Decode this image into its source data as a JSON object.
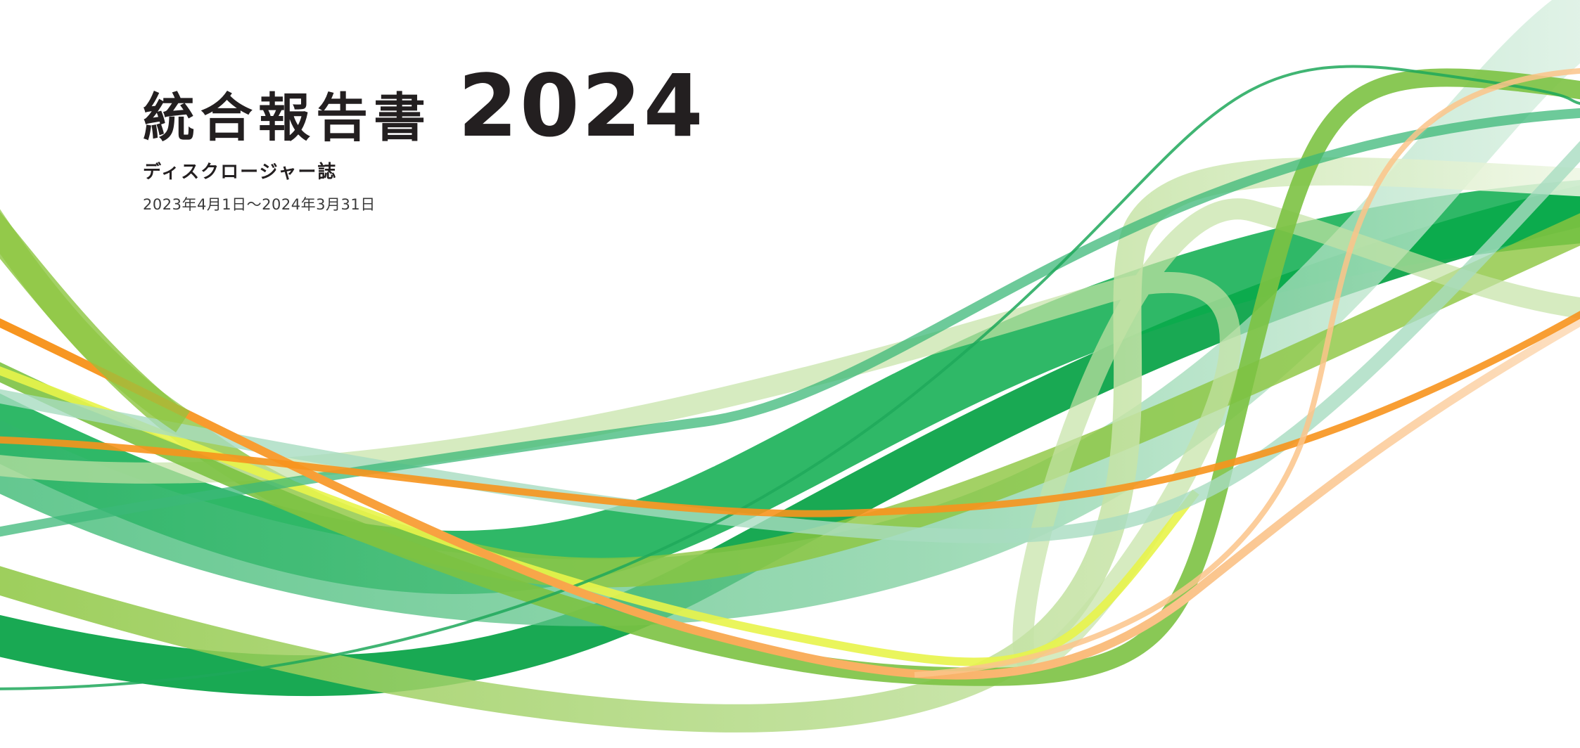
{
  "cover": {
    "title": "統合報告書",
    "year": "2024",
    "subtitle": "ディスクロージャー誌",
    "period": "2023年4月1日〜2024年3月31日"
  },
  "palette": {
    "green_dark": "#00a040",
    "green_mid": "#3cb878",
    "green_light": "#8cc63f",
    "green_pale": "#c5e3a5",
    "mint": "#a8dcc0",
    "yellow": "#e8f44a",
    "orange": "#f7941d",
    "orange_pale": "#fbc48a",
    "text": "#231f20"
  }
}
